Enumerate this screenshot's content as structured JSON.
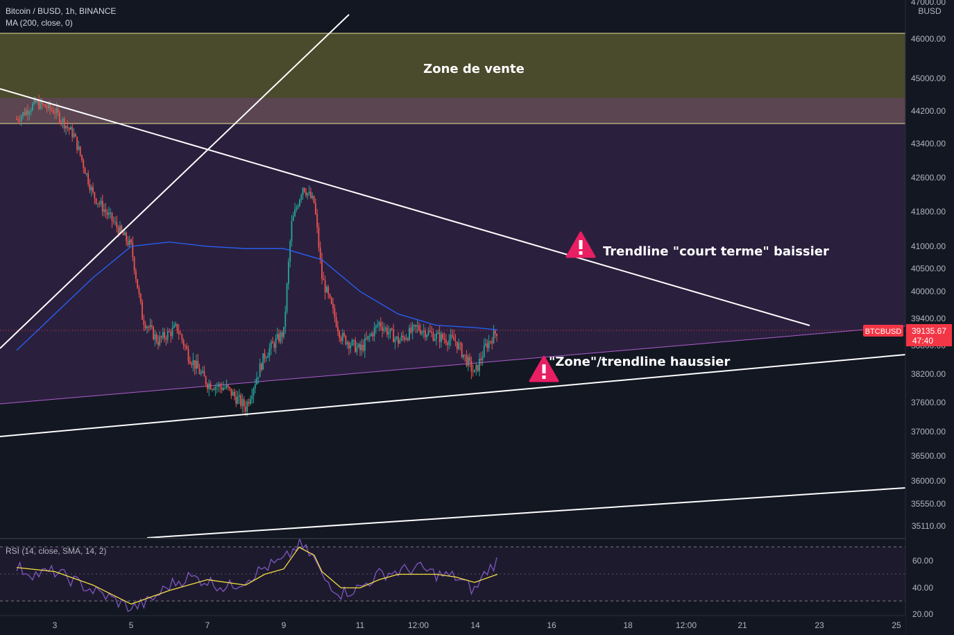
{
  "header": {
    "symbol_line": "Bitcoin / BUSD, 1h, BINANCE",
    "indicator_line": "MA (200, close, 0)",
    "currency": "BUSD"
  },
  "annotations": {
    "sell_zone": "Zone de vente",
    "short_term_trendline": "Trendline \"court terme\" baissier",
    "bull_trendline": "\"Zone\"/trendline haussier"
  },
  "price_tag": {
    "symbol": "BTCBUSD",
    "price": "39135.67",
    "countdown": "47:40"
  },
  "rsi_label": "RSI (14, close, SMA, 14, 2)",
  "colors": {
    "background": "#131722",
    "up": "#26a69a",
    "down": "#ef5350",
    "ma": "#2962ff",
    "rsi": "#7e57c2",
    "rsi_sma": "#f5e042",
    "sell_zone": "#4a4a2c",
    "triangle_fill": "#2e2140",
    "triangle_edge": "#b05dd0",
    "trendline": "#ffffff",
    "warning": "#e91e63",
    "price_tag": "#f23645"
  },
  "icons": [
    "warning-icon"
  ],
  "chart_data": {
    "type": "candlestick",
    "price_axis": {
      "labels": [
        "47000.00",
        "46000.00",
        "45000.00",
        "44200.00",
        "43400.00",
        "42600.00",
        "41800.00",
        "41000.00",
        "40500.00",
        "40000.00",
        "39400.00",
        "38800.00",
        "38200.00",
        "37600.00",
        "37000.00",
        "36500.00",
        "36000.00",
        "35550.00",
        "35110.00"
      ]
    },
    "time_axis": {
      "labels": [
        "3",
        "5",
        "7",
        "9",
        "11",
        "12:00",
        "14",
        "16",
        "18",
        "12:00",
        "21",
        "23",
        "25"
      ]
    },
    "price_path": [
      [
        "2",
        44000
      ],
      [
        "2.5",
        44400
      ],
      [
        "3",
        44200
      ],
      [
        "3.5",
        43600
      ],
      [
        "4",
        42200
      ],
      [
        "4.5",
        41600
      ],
      [
        "5",
        41000
      ],
      [
        "5.3",
        39400
      ],
      [
        "5.7",
        38900
      ],
      [
        "6.2",
        39200
      ],
      [
        "6.5",
        38600
      ],
      [
        "7",
        38000
      ],
      [
        "7.5",
        37900
      ],
      [
        "8",
        37500
      ],
      [
        "8.5",
        38600
      ],
      [
        "9",
        39100
      ],
      [
        "9.2",
        41500
      ],
      [
        "9.5",
        42400
      ],
      [
        "9.8",
        42000
      ],
      [
        "10",
        40300
      ],
      [
        "10.5",
        39000
      ],
      [
        "11",
        38700
      ],
      [
        "11.5",
        39300
      ],
      [
        "12",
        38900
      ],
      [
        "12.5",
        39200
      ],
      [
        "13",
        39000
      ],
      [
        "13.5",
        38900
      ],
      [
        "14",
        38200
      ],
      [
        "14.3",
        38800
      ],
      [
        "14.6",
        39135.67
      ]
    ],
    "ma_200": [
      [
        "2",
        38700
      ],
      [
        "3",
        39500
      ],
      [
        "4",
        40300
      ],
      [
        "5",
        41000
      ],
      [
        "6",
        41100
      ],
      [
        "7",
        41000
      ],
      [
        "8",
        40950
      ],
      [
        "9",
        40950
      ],
      [
        "10",
        40700
      ],
      [
        "11",
        40000
      ],
      [
        "12",
        39500
      ],
      [
        "13",
        39250
      ],
      [
        "14",
        39200
      ],
      [
        "14.6",
        39150
      ]
    ],
    "sell_zone_range": [
      43900,
      46150
    ],
    "rsi": {
      "ticks": [
        "60.00",
        "40.00",
        "20.00"
      ],
      "levels": [
        70,
        50,
        30
      ],
      "values": [
        [
          "2",
          55
        ],
        [
          "2.5",
          50
        ],
        [
          "3",
          52
        ],
        [
          "3.5",
          45
        ],
        [
          "4",
          38
        ],
        [
          "4.5",
          32
        ],
        [
          "5",
          25
        ],
        [
          "5.5",
          30
        ],
        [
          "6",
          42
        ],
        [
          "6.5",
          48
        ],
        [
          "7",
          45
        ],
        [
          "7.5",
          40
        ],
        [
          "8",
          46
        ],
        [
          "8.5",
          55
        ],
        [
          "9",
          60
        ],
        [
          "9.4",
          72
        ],
        [
          "9.8",
          62
        ],
        [
          "10",
          48
        ],
        [
          "10.5",
          36
        ],
        [
          "11",
          40
        ],
        [
          "11.5",
          50
        ],
        [
          "12",
          52
        ],
        [
          "12.5",
          55
        ],
        [
          "13",
          50
        ],
        [
          "13.5",
          48
        ],
        [
          "14",
          38
        ],
        [
          "14.3",
          52
        ],
        [
          "14.6",
          60
        ]
      ],
      "sma": [
        [
          "2",
          55
        ],
        [
          "3",
          52
        ],
        [
          "4",
          42
        ],
        [
          "5",
          28
        ],
        [
          "6",
          38
        ],
        [
          "7",
          46
        ],
        [
          "8",
          42
        ],
        [
          "8.5",
          50
        ],
        [
          "9",
          54
        ],
        [
          "9.4",
          70
        ],
        [
          "9.8",
          64
        ],
        [
          "10",
          52
        ],
        [
          "10.5",
          40
        ],
        [
          "11",
          40
        ],
        [
          "11.5",
          46
        ],
        [
          "12",
          50
        ],
        [
          "12.5",
          50
        ],
        [
          "13",
          50
        ],
        [
          "13.5",
          48
        ],
        [
          "14",
          44
        ],
        [
          "14.6",
          50
        ]
      ]
    }
  }
}
